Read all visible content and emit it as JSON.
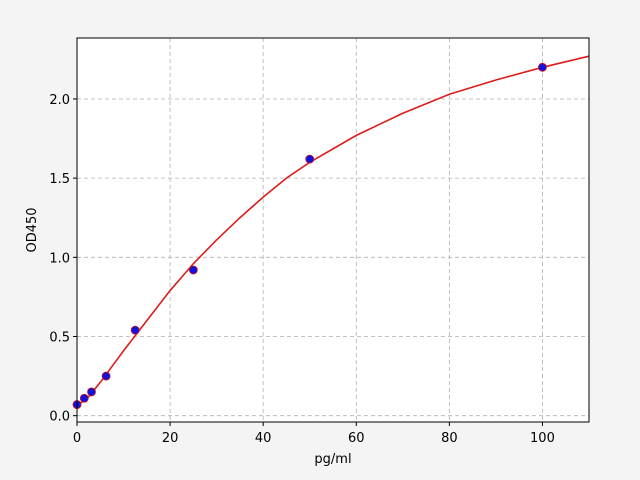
{
  "chart_data": {
    "type": "scatter",
    "xlabel": "pg/ml",
    "ylabel": "OD450",
    "xlim": [
      0,
      110
    ],
    "ylim": [
      -0.04,
      2.385
    ],
    "xticks": [
      0,
      20,
      40,
      60,
      80,
      100
    ],
    "yticks": [
      {
        "value": 0,
        "label": "0.0"
      },
      {
        "value": 0.5,
        "label": "0.5"
      },
      {
        "value": 1,
        "label": "1.0"
      },
      {
        "value": 1.5,
        "label": "1.5"
      },
      {
        "value": 2,
        "label": "2.0"
      }
    ],
    "grid": true,
    "series": [
      {
        "type": "scatter",
        "color": "#1010e0",
        "edge_color": "#cc1111",
        "x": [
          0,
          1.56,
          3.12,
          6.25,
          12.5,
          25,
          50,
          100
        ],
        "values": [
          0.07,
          0.11,
          0.15,
          0.25,
          0.54,
          0.92,
          1.62,
          2.2
        ]
      },
      {
        "type": "line",
        "color": "#dd1c1c",
        "x": [
          0,
          2.5,
          5,
          7.5,
          10,
          15,
          20,
          25,
          30,
          35,
          40,
          45,
          50,
          60,
          70,
          80,
          90,
          100,
          110
        ],
        "values": [
          0.06,
          0.12,
          0.21,
          0.31,
          0.41,
          0.6,
          0.79,
          0.96,
          1.11,
          1.25,
          1.38,
          1.5,
          1.6,
          1.77,
          1.91,
          2.03,
          2.12,
          2.2,
          2.27
        ]
      }
    ]
  }
}
